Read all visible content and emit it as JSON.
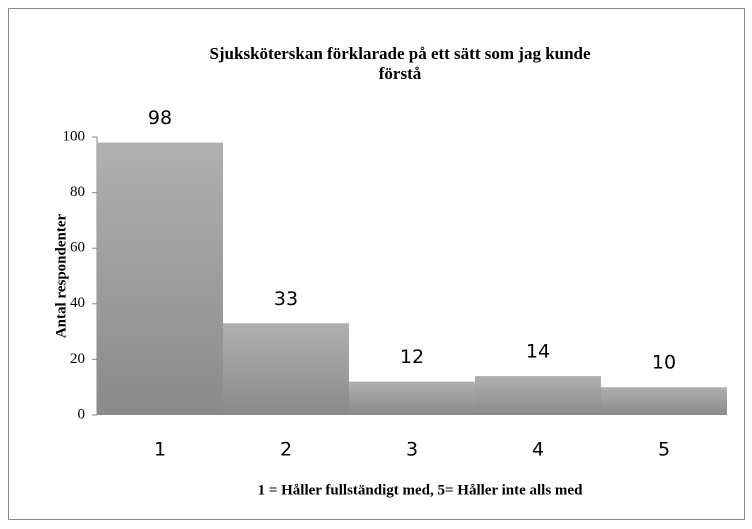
{
  "chart_data": {
    "type": "bar",
    "title": "Sjuksköterskan förklarade på ett sätt som jag kunde förstå",
    "xlabel": "1 = Håller fullständigt med, 5= Håller inte alls med",
    "ylabel": "Antal respondenter",
    "categories": [
      "1",
      "2",
      "3",
      "4",
      "5"
    ],
    "values": [
      98,
      33,
      12,
      14,
      10
    ],
    "color": "#8a8a8a",
    "ylim": [
      0,
      100
    ],
    "yticks": [
      0,
      20,
      40,
      60,
      80,
      100
    ],
    "grid": false
  }
}
